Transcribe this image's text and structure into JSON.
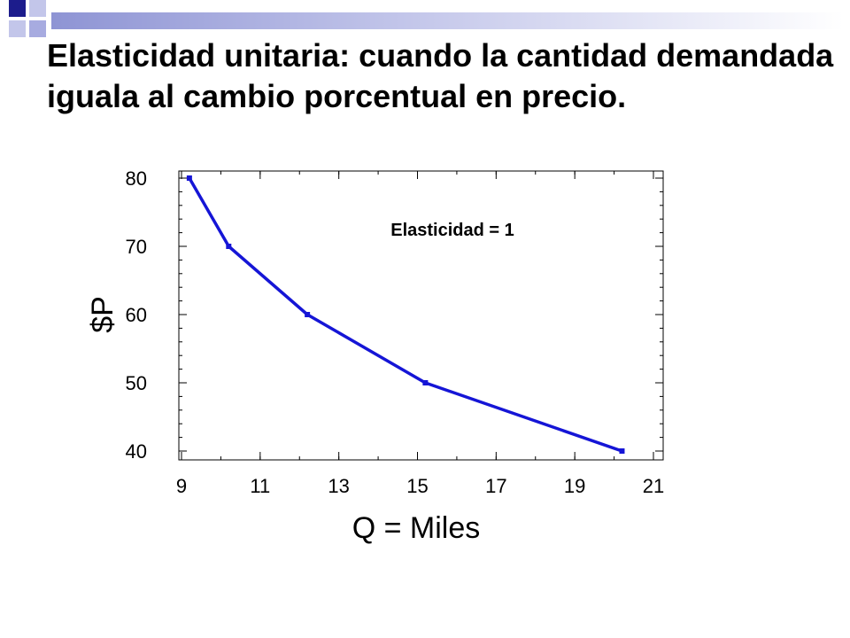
{
  "slide": {
    "title": "Elasticidad unitaria: cuando la cantidad demandada iguala al cambio porcentual en precio."
  },
  "colors": {
    "line": "#1515d6",
    "title_rule": "#8e94d4",
    "corner_dark": "#1c1c8c",
    "corner_light": "#a7abe0"
  },
  "chart_data": {
    "type": "line",
    "title": "",
    "xlabel": "Q = Miles",
    "ylabel": "$P",
    "xlim": [
      9,
      21
    ],
    "ylim": [
      40,
      80
    ],
    "xticks": [
      9,
      11,
      13,
      15,
      17,
      19,
      21
    ],
    "yticks": [
      40,
      50,
      60,
      70,
      80
    ],
    "x": [
      9.2,
      10.2,
      12.2,
      15.2,
      20.2
    ],
    "y": [
      80,
      70,
      60,
      50,
      40
    ],
    "annotation": "Elasticidad = 1",
    "grid": false,
    "legend": "none"
  }
}
